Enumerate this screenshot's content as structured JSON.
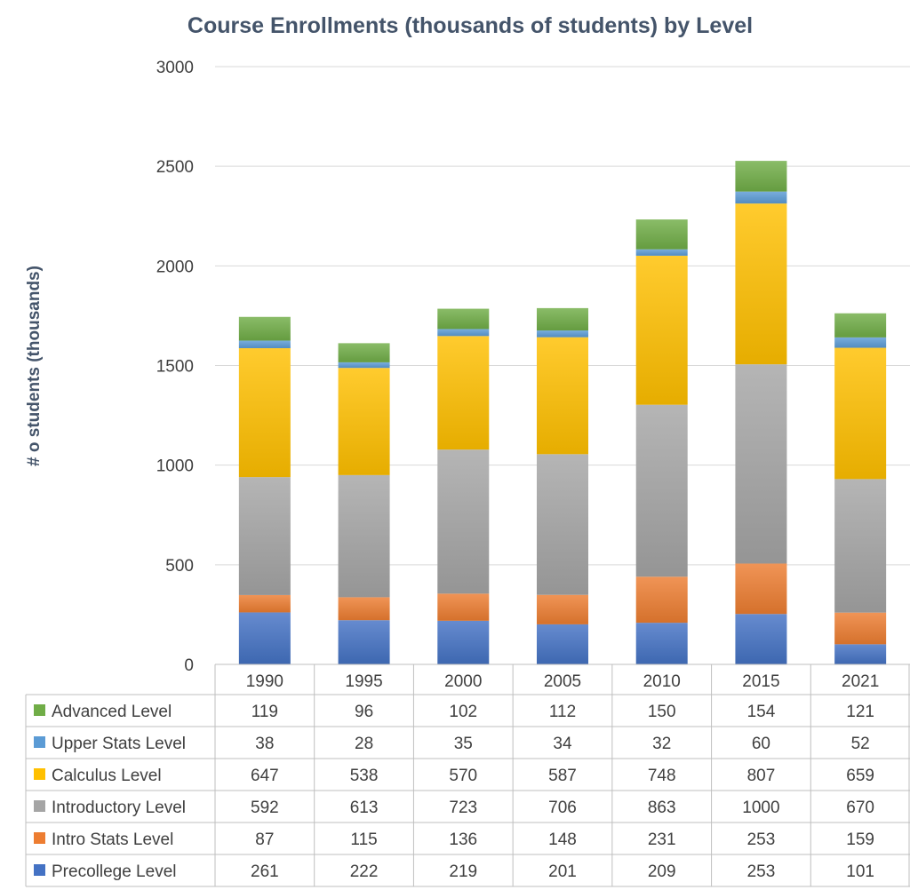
{
  "chart_data": {
    "type": "bar",
    "stacked": true,
    "title": "Course Enrollments (thousands of students) by Level",
    "xlabel": "",
    "ylabel": "# o students (thousands)",
    "ylim": [
      0,
      3000
    ],
    "yticks": [
      0,
      500,
      1000,
      1500,
      2000,
      2500,
      3000
    ],
    "grid": true,
    "legend": "data-table-left",
    "categories": [
      "1990",
      "1995",
      "2000",
      "2005",
      "2010",
      "2015",
      "2021"
    ],
    "series": [
      {
        "name": "Precollege  Level",
        "color": "#4472C4",
        "values": [
          261,
          222,
          219,
          201,
          209,
          253,
          101
        ]
      },
      {
        "name": "Intro Stats Level",
        "color": "#ED7D31",
        "values": [
          87,
          115,
          136,
          148,
          231,
          253,
          159
        ]
      },
      {
        "name": "Introductory Level",
        "color": "#A5A5A5",
        "values": [
          592,
          613,
          723,
          706,
          863,
          1000,
          670
        ]
      },
      {
        "name": "Calculus Level",
        "color": "#FFC000",
        "values": [
          647,
          538,
          570,
          587,
          748,
          807,
          659
        ]
      },
      {
        "name": "Upper Stats Level",
        "color": "#5B9BD5",
        "values": [
          38,
          28,
          35,
          34,
          32,
          60,
          52
        ]
      },
      {
        "name": "Advanced Level",
        "color": "#70AD47",
        "values": [
          119,
          96,
          102,
          112,
          150,
          154,
          121
        ]
      }
    ]
  }
}
